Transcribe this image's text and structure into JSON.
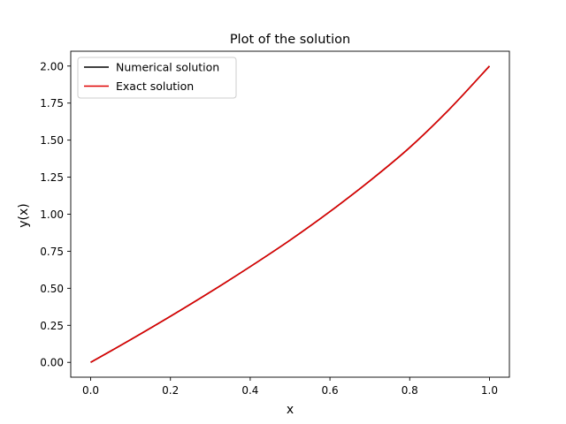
{
  "chart_data": {
    "type": "line",
    "title": "Plot of the solution",
    "xlabel": "x",
    "ylabel": "y(x)",
    "xlim": [
      -0.05,
      1.05
    ],
    "ylim": [
      -0.1,
      2.1
    ],
    "xticks": [
      0.0,
      0.2,
      0.4,
      0.6,
      0.8,
      1.0
    ],
    "xtick_labels": [
      "0.0",
      "0.2",
      "0.4",
      "0.6",
      "0.8",
      "1.0"
    ],
    "yticks": [
      0.0,
      0.25,
      0.5,
      0.75,
      1.0,
      1.25,
      1.5,
      1.75,
      2.0
    ],
    "ytick_labels": [
      "0.00",
      "0.25",
      "0.50",
      "0.75",
      "1.00",
      "1.25",
      "1.50",
      "1.75",
      "2.00"
    ],
    "grid": false,
    "legend_position": "upper-left",
    "x": [
      0.0,
      0.1,
      0.2,
      0.3,
      0.4,
      0.5,
      0.6,
      0.7,
      0.8,
      0.9,
      1.0
    ],
    "series": [
      {
        "name": "Numerical solution",
        "color": "#000000",
        "values": [
          0.0,
          0.153,
          0.311,
          0.475,
          0.646,
          0.825,
          1.018,
          1.225,
          1.45,
          1.71,
          2.0
        ]
      },
      {
        "name": "Exact solution",
        "color": "#e00000",
        "values": [
          0.0,
          0.153,
          0.311,
          0.475,
          0.646,
          0.825,
          1.018,
          1.225,
          1.45,
          1.71,
          2.0
        ]
      }
    ]
  }
}
